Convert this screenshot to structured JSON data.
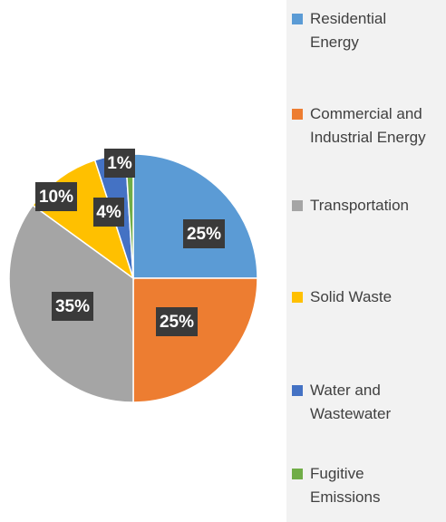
{
  "chart_data": {
    "type": "pie",
    "categories": [
      "Residential Energy",
      "Commercial and Industrial Energy",
      "Transportation",
      "Solid Waste",
      "Water and Wastewater",
      "Fugitive Emissions"
    ],
    "values": [
      25,
      25,
      35,
      10,
      4,
      1
    ],
    "value_labels": [
      "25%",
      "25%",
      "35%",
      "10%",
      "4%",
      "1%"
    ],
    "colors": [
      "#5b9bd5",
      "#ed7d31",
      "#a5a5a5",
      "#ffc000",
      "#4472c4",
      "#70ad47"
    ],
    "legend": "right"
  }
}
